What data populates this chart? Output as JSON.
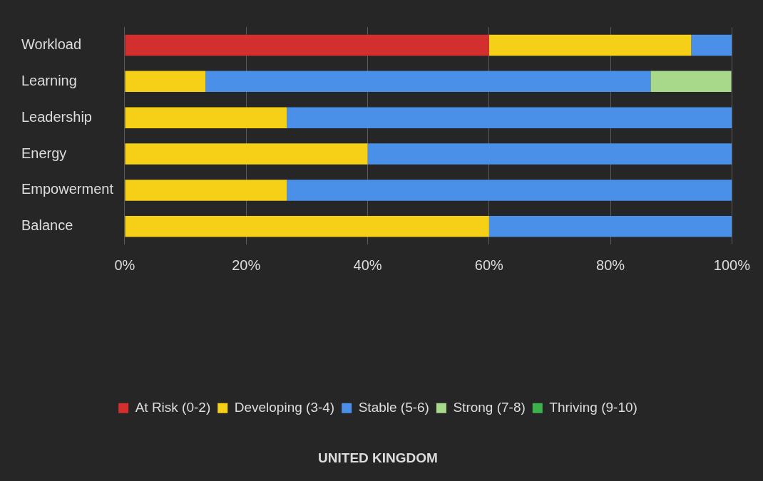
{
  "chart_data": {
    "type": "bar",
    "orientation": "horizontal",
    "stacked": true,
    "title": "UNITED KINGDOM",
    "categories": [
      "Workload",
      "Learning",
      "Leadership",
      "Energy",
      "Empowerment",
      "Balance"
    ],
    "series": [
      {
        "name": "At Risk (0-2)",
        "color": "#d32f2f",
        "values": [
          60,
          null,
          null,
          null,
          null,
          null
        ]
      },
      {
        "name": "Developing (3-4)",
        "color": "#f5d017",
        "values": [
          33.3,
          13.3,
          26.7,
          40,
          26.7,
          60
        ]
      },
      {
        "name": "Stable (5-6)",
        "color": "#4a90e8",
        "values": [
          6.7,
          73.3,
          73.3,
          60,
          73.3,
          40
        ]
      },
      {
        "name": "Strong (7-8)",
        "color": "#a8d88a",
        "values": [
          null,
          13.3,
          null,
          null,
          null,
          null
        ]
      },
      {
        "name": "Thriving (9-10)",
        "color": "#3cb34a",
        "values": [
          null,
          null,
          null,
          null,
          null,
          null
        ]
      }
    ],
    "xlim": [
      0,
      100
    ],
    "xticks": [
      {
        "value": 0,
        "label": "0%"
      },
      {
        "value": 20,
        "label": "20%"
      },
      {
        "value": 40,
        "label": "40%"
      },
      {
        "value": 60,
        "label": "60%"
      },
      {
        "value": 80,
        "label": "80%"
      },
      {
        "value": 100,
        "label": "100%"
      }
    ],
    "grid": "x",
    "legend": "bottom"
  }
}
